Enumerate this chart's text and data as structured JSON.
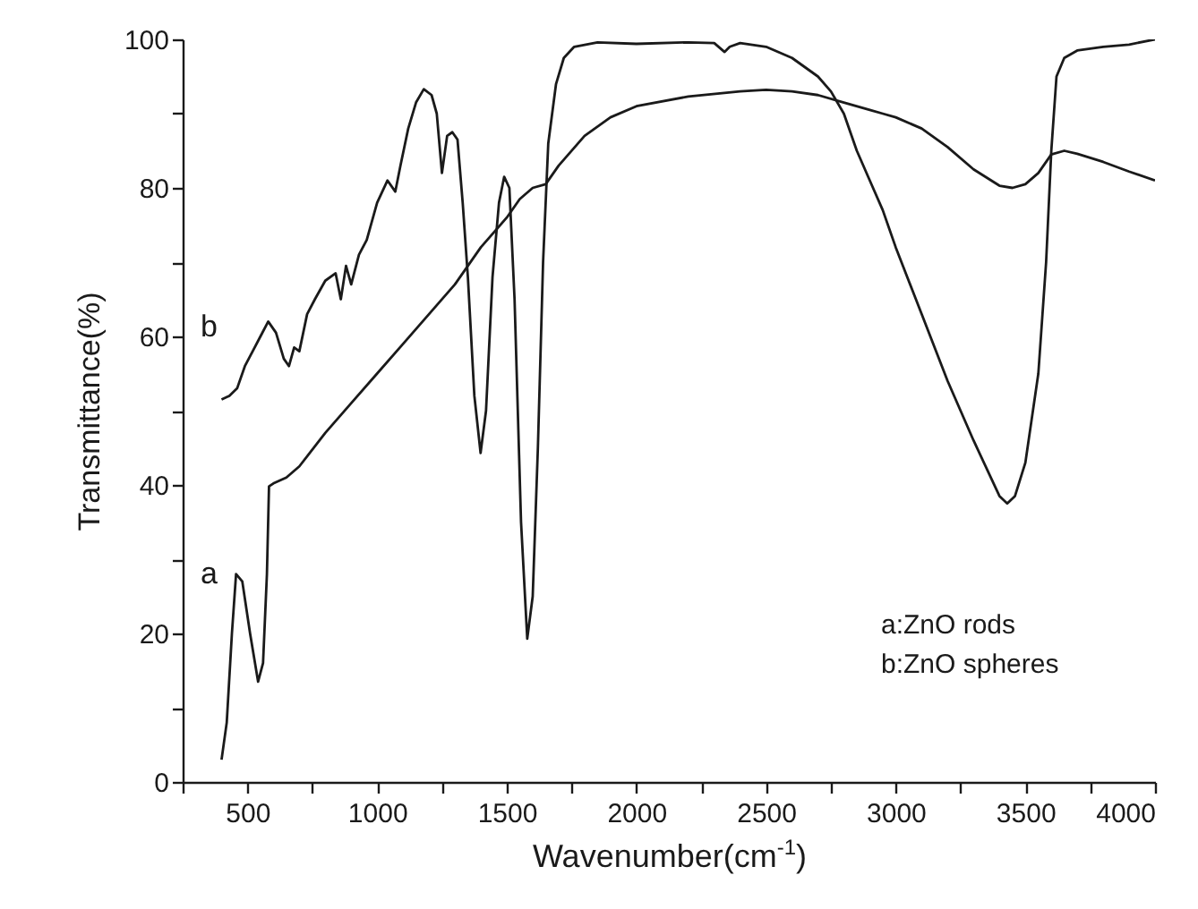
{
  "chart_data": {
    "type": "line",
    "xlabel": "Wavenumber(cm$^{-1}$)",
    "ylabel": "Transmittance(%)",
    "xlim": [
      250,
      4000
    ],
    "ylim": [
      0,
      100
    ],
    "xticks": [
      {
        "value": 250,
        "label": null
      },
      500,
      {
        "value": 750,
        "label": null
      },
      1000,
      {
        "value": 1250,
        "label": null
      },
      1500,
      {
        "value": 1750,
        "label": null
      },
      2000,
      {
        "value": 2250,
        "label": null
      },
      2500,
      {
        "value": 2750,
        "label": null
      },
      3000,
      {
        "value": 3250,
        "label": null
      },
      3500,
      {
        "value": 3750,
        "label": null
      },
      4000
    ],
    "yticks": [
      0,
      {
        "value": 10,
        "label": null
      },
      20,
      {
        "value": 30,
        "label": null
      },
      40,
      {
        "value": 50,
        "label": null
      },
      60,
      {
        "value": 70,
        "label": null
      },
      80,
      {
        "value": 90,
        "label": null
      },
      100
    ],
    "grid": false,
    "marker": "none",
    "line_style": "solid",
    "series": [
      {
        "color": "#1a1a1a",
        "x": [
          400,
          420,
          440,
          456,
          480,
          510,
          541,
          560,
          575,
          583,
          600,
          650,
          700,
          800,
          900,
          1000,
          1100,
          1200,
          1300,
          1400,
          1500,
          1550,
          1600,
          1650,
          1700,
          1800,
          1900,
          2000,
          2200,
          2400,
          2500,
          2600,
          2700,
          2800,
          2900,
          2950,
          3000,
          3100,
          3200,
          3300,
          3400,
          3450,
          3500,
          3550,
          3600,
          3650,
          3700,
          3800,
          3900,
          4000
        ],
        "values": [
          3,
          8,
          20,
          28,
          27,
          20,
          13.5,
          16,
          28,
          39.8,
          40.2,
          41,
          42.5,
          47,
          51,
          55,
          59,
          63,
          67,
          72,
          76,
          78.5,
          80,
          80.5,
          83,
          87,
          89.5,
          91,
          92.3,
          93,
          93.2,
          93,
          92.5,
          91.5,
          90.5,
          90,
          89.5,
          88,
          85.5,
          82.5,
          80.3,
          80,
          80.5,
          82,
          84.5,
          85,
          84.6,
          83.5,
          82.2,
          81
        ]
      },
      {
        "color": "#1a1a1a",
        "x": [
          400,
          430,
          460,
          490,
          520,
          550,
          580,
          610,
          640,
          660,
          680,
          700,
          730,
          760,
          800,
          840,
          860,
          880,
          900,
          930,
          960,
          1000,
          1040,
          1070,
          1090,
          1120,
          1150,
          1180,
          1210,
          1230,
          1250,
          1270,
          1290,
          1310,
          1330,
          1350,
          1375,
          1399,
          1420,
          1445,
          1470,
          1490,
          1510,
          1530,
          1555,
          1579,
          1600,
          1620,
          1640,
          1660,
          1690,
          1720,
          1760,
          1850,
          2000,
          2200,
          2300,
          2340,
          2360,
          2400,
          2500,
          2600,
          2700,
          2750,
          2800,
          2850,
          2900,
          2950,
          3000,
          3100,
          3200,
          3300,
          3400,
          3430,
          3460,
          3500,
          3550,
          3580,
          3600,
          3620,
          3650,
          3700,
          3800,
          3900,
          4000
        ],
        "values": [
          51.5,
          52,
          53,
          56,
          58,
          60,
          62,
          60.5,
          57,
          56,
          58.5,
          58,
          63,
          65,
          67.5,
          68.5,
          65,
          69.5,
          67,
          71,
          73,
          78,
          81,
          79.5,
          83,
          88,
          91.5,
          93.3,
          92.5,
          90,
          82,
          87,
          87.5,
          86.5,
          78,
          68,
          52,
          44.3,
          50,
          68,
          78,
          81.5,
          80,
          65,
          35,
          19.3,
          25,
          45,
          70,
          86,
          94,
          97.5,
          99,
          99.6,
          99.4,
          99.6,
          99.5,
          98.3,
          99,
          99.5,
          99,
          97.5,
          95,
          93,
          90,
          85,
          81,
          77,
          72,
          63,
          54,
          46,
          38.5,
          37.5,
          38.5,
          43,
          55,
          70,
          85,
          95,
          97.5,
          98.5,
          99,
          99.3,
          100
        ]
      }
    ],
    "annotations": [
      "a",
      "b",
      "a:ZnO rods",
      "b:ZnO spheres"
    ]
  }
}
